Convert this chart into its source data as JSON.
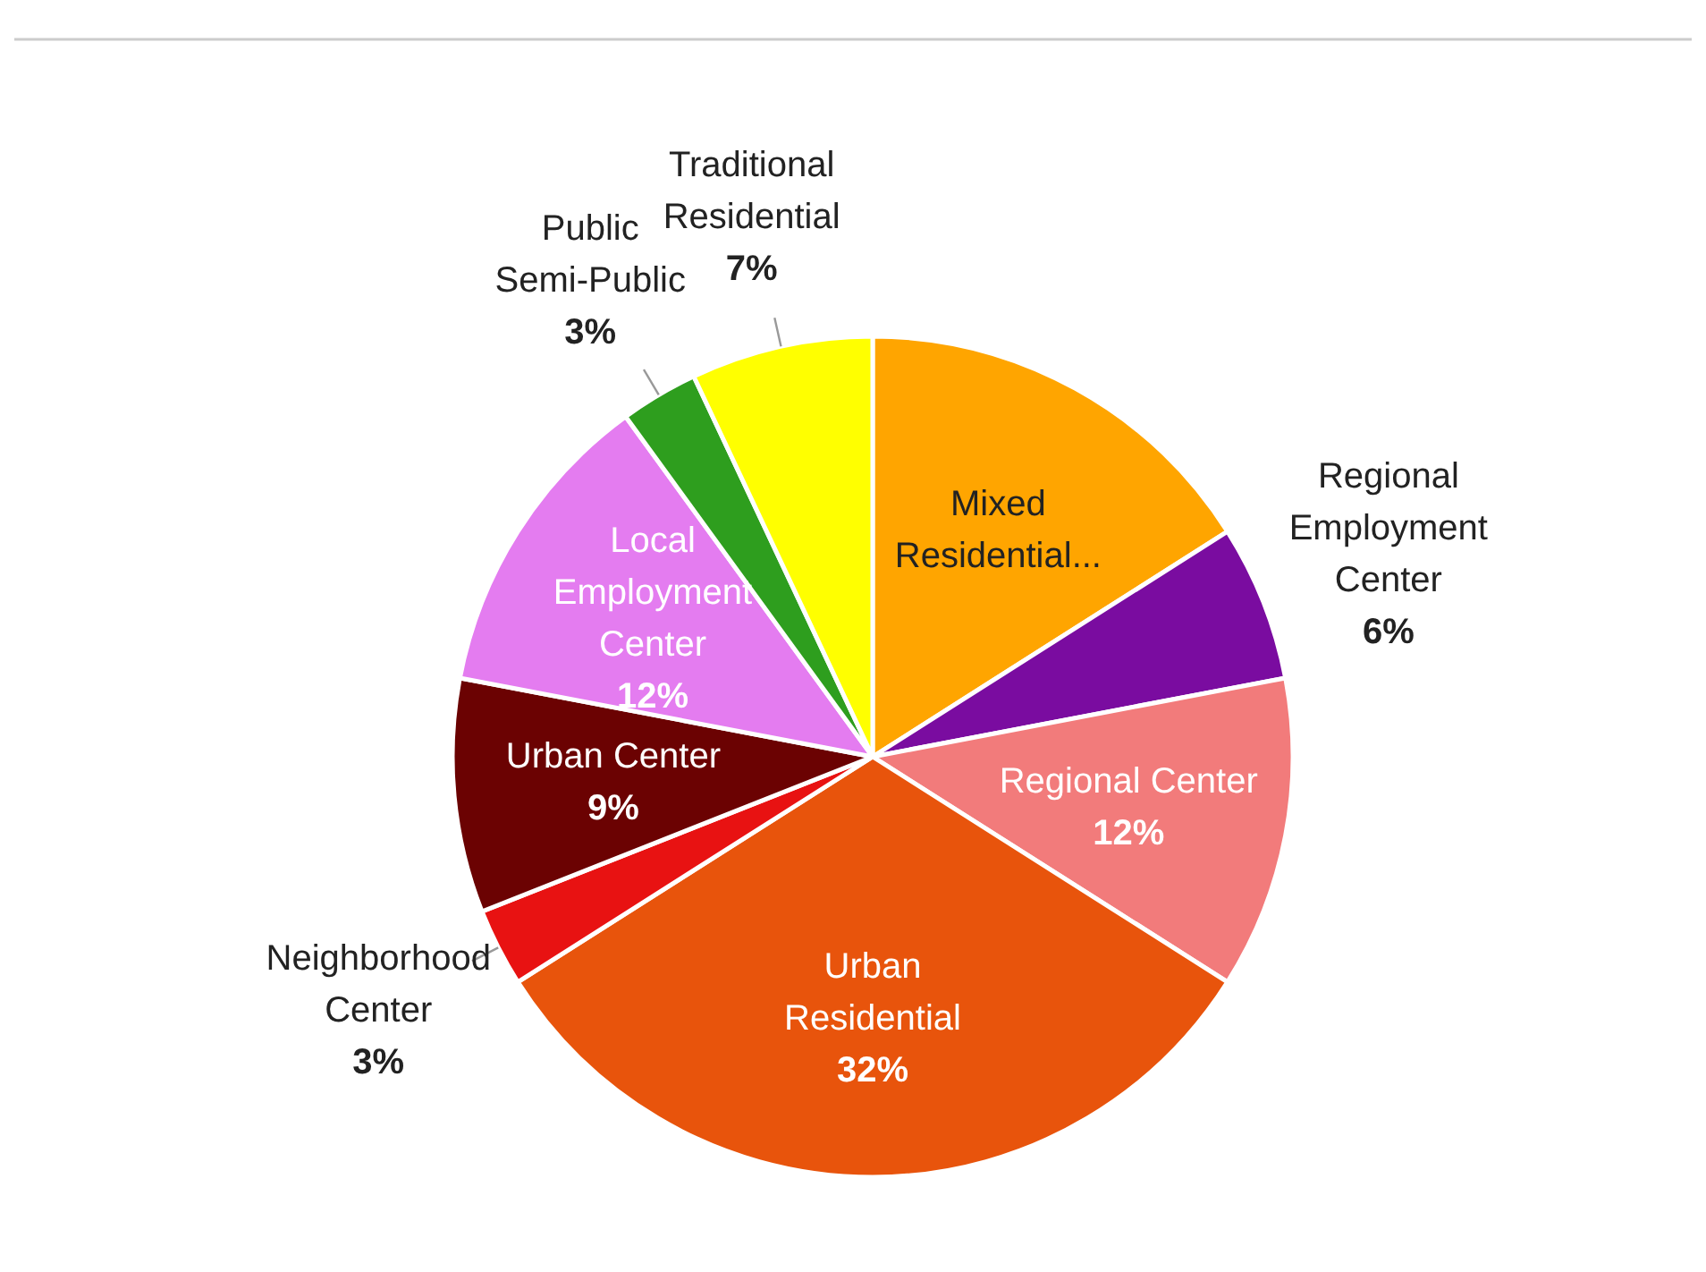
{
  "chart_data": {
    "type": "pie",
    "categories": [
      "Mixed Residential...",
      "Regional Employment Center",
      "Regional Center",
      "Urban Residential",
      "Neighborhood Center",
      "Urban Center",
      "Local Employment Center",
      "Public Semi-Public",
      "Traditional Residential"
    ],
    "values": [
      16,
      6,
      12,
      32,
      3,
      9,
      12,
      3,
      7
    ],
    "value_labels": [
      null,
      "6%",
      "12%",
      "32%",
      "3%",
      "9%",
      "12%",
      "3%",
      "7%"
    ],
    "colors": [
      "#ffa500",
      "#7a0ca0",
      "#f27b7b",
      "#e8540c",
      "#e81212",
      "#6b0202",
      "#e47cf0",
      "#2e9e1e",
      "#ffff00"
    ]
  }
}
